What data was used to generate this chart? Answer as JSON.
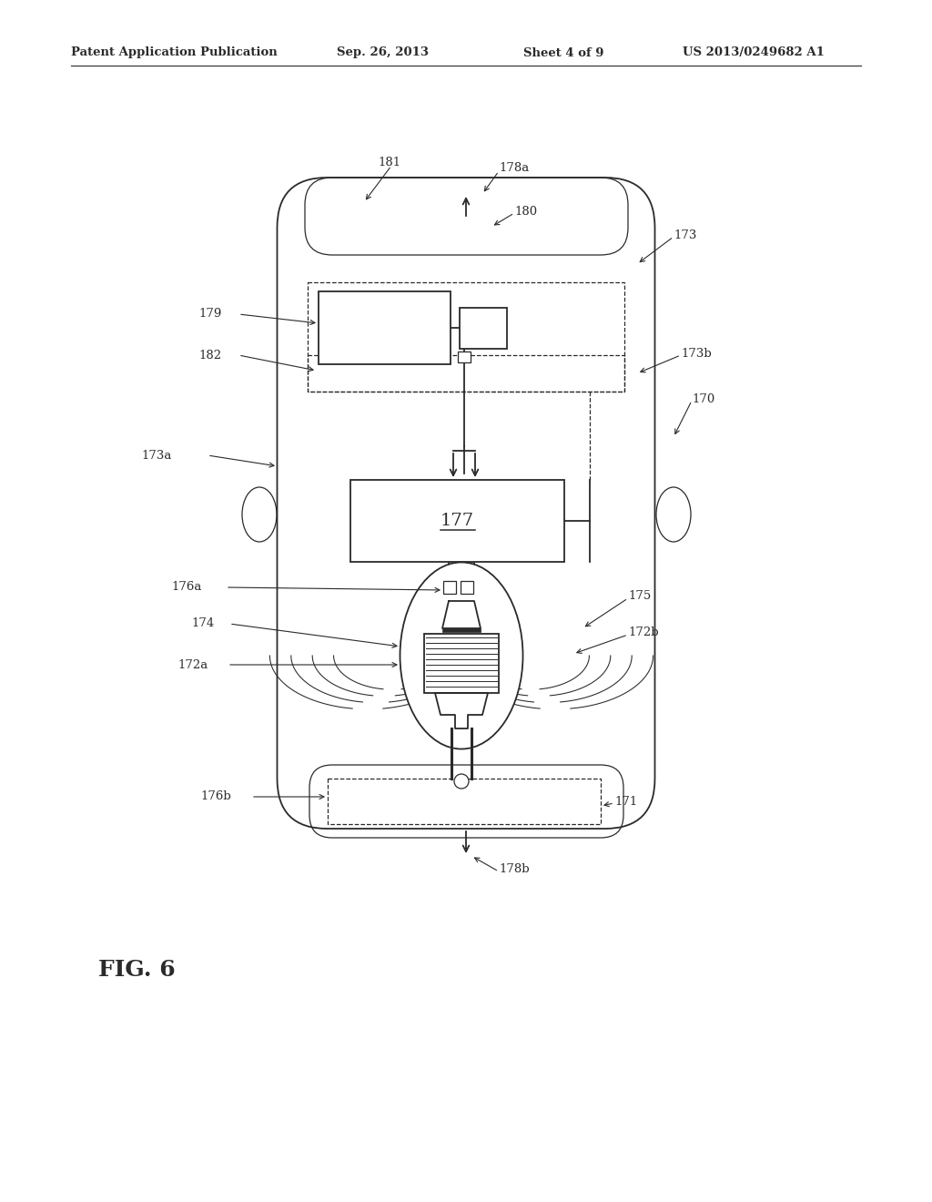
{
  "title": "Patent Application Publication",
  "date": "Sep. 26, 2013",
  "sheet": "Sheet 4 of 9",
  "patent_num": "US 2013/0249682 A1",
  "fig_label": "FIG. 6",
  "background": "#ffffff",
  "line_color": "#2a2a2a"
}
